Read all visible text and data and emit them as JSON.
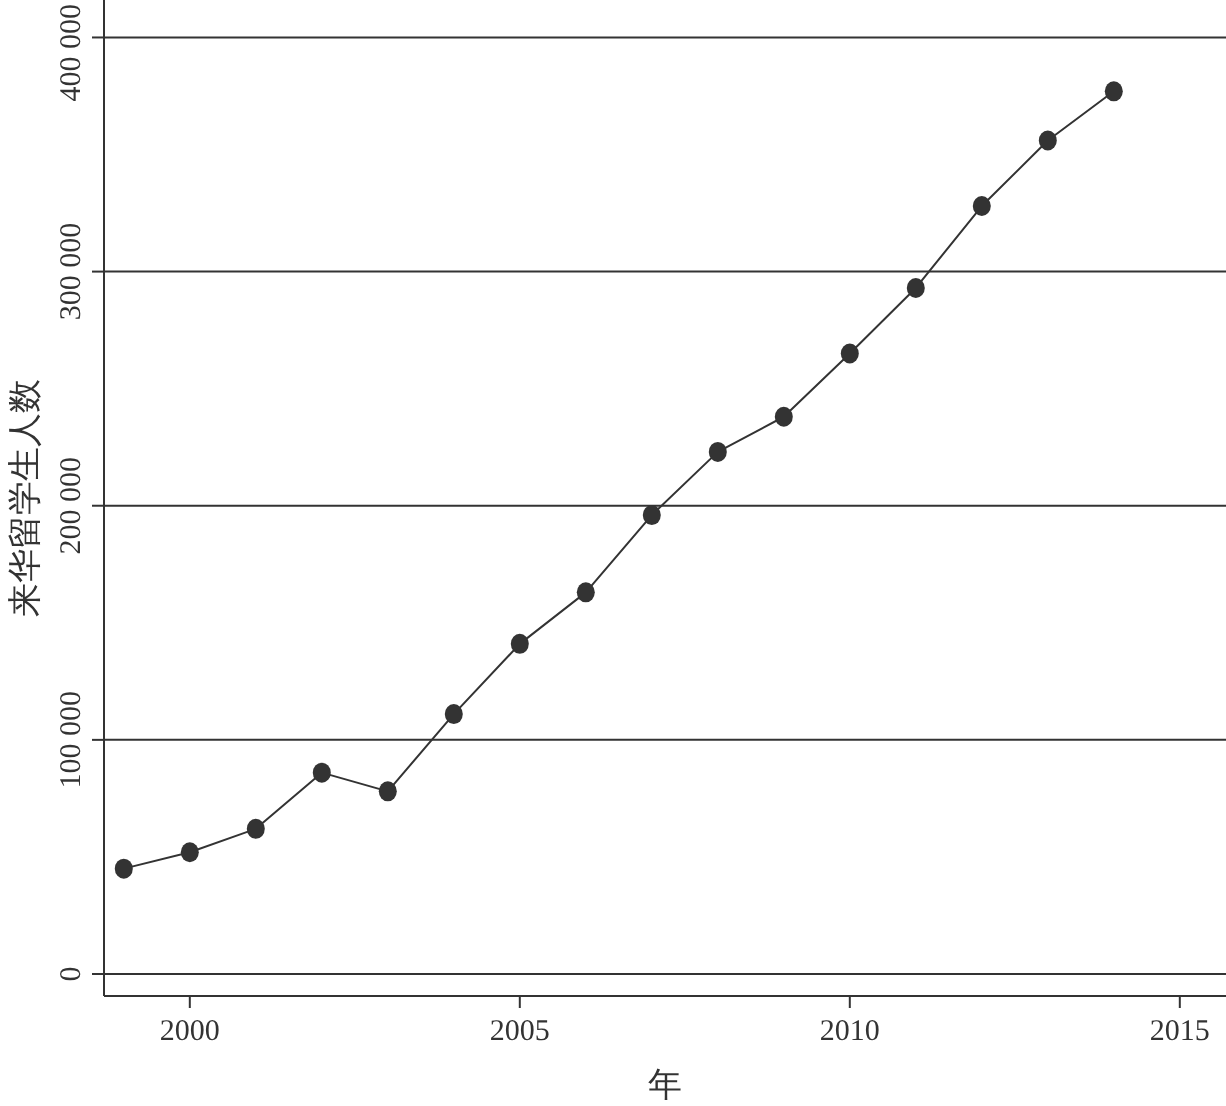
{
  "chart_data": {
    "type": "line",
    "xlabel": "年",
    "ylabel": "来华留学生人数",
    "x": [
      1999,
      2000,
      2001,
      2002,
      2003,
      2004,
      2005,
      2006,
      2007,
      2008,
      2009,
      2010,
      2011,
      2012,
      2013,
      2014
    ],
    "series": [
      {
        "color": "#333333",
        "values": [
          45000,
          52000,
          62000,
          86000,
          78000,
          111000,
          141000,
          163000,
          196000,
          223000,
          238000,
          265000,
          293000,
          328000,
          356000,
          377000
        ]
      }
    ],
    "xlim": [
      1998.7,
      2015.7
    ],
    "ylim": [
      -9400,
      416000
    ],
    "xticks": [
      2000,
      2005,
      2010,
      2015
    ],
    "yticks": [
      {
        "value": 0,
        "label": "0"
      },
      {
        "value": 100000,
        "label": "100 000"
      },
      {
        "value": 200000,
        "label": "200 000"
      },
      {
        "value": 300000,
        "label": "300 000"
      },
      {
        "value": 400000,
        "label": "400 000"
      }
    ],
    "grid": "y",
    "marker": "circle",
    "line_style": "solid"
  }
}
